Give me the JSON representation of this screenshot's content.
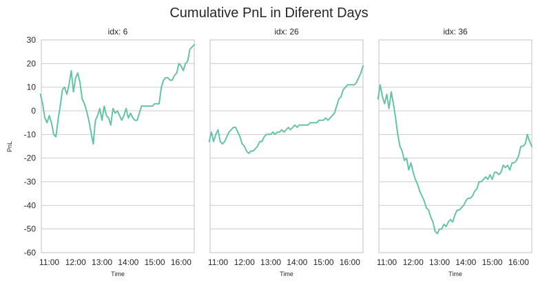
{
  "chart_data": {
    "type": "line",
    "title": "Cumulative PnL in Diferent Days",
    "ylabel": "PnL",
    "xlabel": "Time",
    "ylim": [
      -60,
      30
    ],
    "yticks": [
      -60,
      -50,
      -40,
      -30,
      -20,
      -10,
      0,
      10,
      20,
      30
    ],
    "xlim_hours": [
      10.7,
      16.5
    ],
    "xticks": [
      "11:00",
      "12:00",
      "13:00",
      "14:00",
      "15:00",
      "16:00"
    ],
    "grid": true,
    "line_color": "#66c2a5",
    "panels": [
      {
        "title": "idx: 6",
        "x": [
          "10:40",
          "10:45",
          "10:50",
          "10:55",
          "11:00",
          "11:05",
          "11:10",
          "11:15",
          "11:20",
          "11:25",
          "11:30",
          "11:35",
          "11:40",
          "11:45",
          "11:50",
          "11:55",
          "12:00",
          "12:05",
          "12:10",
          "12:15",
          "12:20",
          "12:25",
          "12:30",
          "12:35",
          "12:40",
          "12:45",
          "12:50",
          "12:55",
          "13:00",
          "13:05",
          "13:10",
          "13:15",
          "13:20",
          "13:25",
          "13:30",
          "13:35",
          "13:40",
          "13:45",
          "13:50",
          "13:55",
          "14:00",
          "14:05",
          "14:10",
          "14:15",
          "14:20",
          "14:25",
          "14:30",
          "14:35",
          "14:40",
          "14:45",
          "14:50",
          "14:55",
          "15:00",
          "15:05",
          "15:10",
          "15:15",
          "15:20",
          "15:25",
          "15:30",
          "15:35",
          "15:40",
          "15:45",
          "15:50",
          "15:55",
          "16:00",
          "16:05",
          "16:10",
          "16:15",
          "16:20",
          "16:25",
          "16:30"
        ],
        "y": [
          7,
          3,
          -3,
          -5,
          -2,
          -5,
          -10,
          -11,
          -4,
          2,
          9,
          10,
          7,
          11,
          17,
          8,
          14,
          16,
          12,
          5,
          3,
          0,
          -4,
          -9,
          -14,
          -4,
          -2,
          1,
          -4,
          2,
          -2,
          -3,
          -6,
          1,
          -1,
          0,
          -2,
          -4,
          -2,
          1,
          -3,
          -1,
          -3,
          -4,
          -4,
          -1,
          2,
          2,
          2,
          2,
          2,
          2,
          3,
          3,
          3,
          10,
          13,
          14,
          14,
          13,
          13,
          15,
          16,
          20,
          19,
          17,
          20,
          21,
          26,
          27,
          28
        ]
      },
      {
        "title": "idx: 26",
        "x": [
          "10:40",
          "10:45",
          "10:50",
          "10:55",
          "11:00",
          "11:05",
          "11:10",
          "11:15",
          "11:20",
          "11:25",
          "11:30",
          "11:35",
          "11:40",
          "11:45",
          "11:50",
          "11:55",
          "12:00",
          "12:05",
          "12:10",
          "12:15",
          "12:20",
          "12:25",
          "12:30",
          "12:35",
          "12:40",
          "12:45",
          "12:50",
          "12:55",
          "13:00",
          "13:05",
          "13:10",
          "13:15",
          "13:20",
          "13:25",
          "13:30",
          "13:35",
          "13:40",
          "13:45",
          "13:50",
          "13:55",
          "14:00",
          "14:05",
          "14:10",
          "14:15",
          "14:20",
          "14:25",
          "14:30",
          "14:35",
          "14:40",
          "14:45",
          "14:50",
          "14:55",
          "15:00",
          "15:05",
          "15:10",
          "15:15",
          "15:20",
          "15:25",
          "15:30",
          "15:35",
          "15:40",
          "15:45",
          "15:50",
          "15:55",
          "16:00",
          "16:05",
          "16:10",
          "16:15",
          "16:20",
          "16:25",
          "16:30"
        ],
        "y": [
          -13,
          -9,
          -13,
          -10,
          -8,
          -13,
          -14,
          -13,
          -11,
          -9,
          -8,
          -7,
          -7,
          -9,
          -11,
          -14,
          -15,
          -17,
          -18,
          -17,
          -17,
          -16,
          -15,
          -13,
          -13,
          -11,
          -10,
          -10,
          -10,
          -9,
          -10,
          -9,
          -9,
          -8,
          -9,
          -8,
          -7,
          -8,
          -7,
          -6,
          -7,
          -6,
          -6,
          -6,
          -6,
          -6,
          -5,
          -5,
          -5,
          -5,
          -4,
          -4,
          -4,
          -3,
          -4,
          -3,
          -2,
          -1,
          2,
          5,
          6,
          9,
          10,
          11,
          11,
          11,
          11,
          12,
          14,
          16,
          19
        ]
      },
      {
        "title": "idx: 36",
        "x": [
          "10:40",
          "10:45",
          "10:50",
          "10:55",
          "11:00",
          "11:05",
          "11:10",
          "11:15",
          "11:20",
          "11:25",
          "11:30",
          "11:35",
          "11:40",
          "11:45",
          "11:50",
          "11:55",
          "12:00",
          "12:05",
          "12:10",
          "12:15",
          "12:20",
          "12:25",
          "12:30",
          "12:35",
          "12:40",
          "12:45",
          "12:50",
          "12:55",
          "13:00",
          "13:05",
          "13:10",
          "13:15",
          "13:20",
          "13:25",
          "13:30",
          "13:35",
          "13:40",
          "13:45",
          "13:50",
          "13:55",
          "14:00",
          "14:05",
          "14:10",
          "14:15",
          "14:20",
          "14:25",
          "14:30",
          "14:35",
          "14:40",
          "14:45",
          "14:50",
          "14:55",
          "15:00",
          "15:05",
          "15:10",
          "15:15",
          "15:20",
          "15:25",
          "15:30",
          "15:35",
          "15:40",
          "15:45",
          "15:50",
          "15:55",
          "16:00",
          "16:05",
          "16:10",
          "16:15",
          "16:20",
          "16:25",
          "16:30"
        ],
        "y": [
          5,
          11,
          6,
          3,
          7,
          1,
          8,
          3,
          -3,
          -10,
          -15,
          -17,
          -21,
          -20,
          -25,
          -22,
          -26,
          -29,
          -31,
          -34,
          -36,
          -38,
          -41,
          -42,
          -45,
          -47,
          -51,
          -52,
          -50,
          -50,
          -48,
          -49,
          -47,
          -46,
          -47,
          -44,
          -42,
          -42,
          -41,
          -40,
          -38,
          -37,
          -37,
          -36,
          -34,
          -33,
          -30,
          -30,
          -29,
          -28,
          -29,
          -27,
          -29,
          -26,
          -26,
          -27,
          -26,
          -23,
          -24,
          -23,
          -25,
          -22,
          -22,
          -21,
          -19,
          -15,
          -15,
          -14,
          -10,
          -13,
          -15
        ]
      }
    ]
  }
}
